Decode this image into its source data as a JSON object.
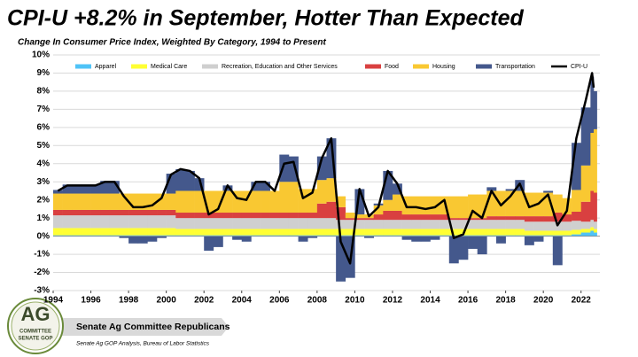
{
  "chart_data": {
    "type": "stacked_bar_line",
    "title": "CPI-U +8.2% in September, Hotter Than Expected",
    "subtitle": "Change In Consumer Price Index, Weighted By Category, 1994 to Present",
    "x": [
      1994,
      1994.5,
      1995,
      1995.5,
      1996,
      1996.5,
      1997,
      1997.5,
      1998,
      1998.5,
      1999,
      1999.5,
      2000,
      2000.5,
      2001,
      2001.5,
      2002,
      2002.5,
      2003,
      2003.5,
      2004,
      2004.5,
      2005,
      2005.5,
      2006,
      2006.5,
      2007,
      2007.5,
      2008,
      2008.5,
      2009,
      2009.5,
      2010,
      2010.5,
      2011,
      2011.5,
      2012,
      2012.5,
      2013,
      2013.5,
      2014,
      2014.5,
      2015,
      2015.5,
      2016,
      2016.5,
      2017,
      2017.5,
      2018,
      2018.5,
      2019,
      2019.5,
      2020,
      2020.5,
      2021,
      2021.5,
      2022,
      2022.5,
      2022.67
    ],
    "xlim": [
      1994,
      2023
    ],
    "xticks": [
      1994,
      1996,
      1998,
      2000,
      2002,
      2004,
      2006,
      2008,
      2010,
      2012,
      2014,
      2016,
      2018,
      2020,
      2022
    ],
    "ylim": [
      -3,
      10
    ],
    "yticks": [
      {
        "value": -3,
        "label": "-3%"
      },
      {
        "value": -2,
        "label": "-2%"
      },
      {
        "value": -1,
        "label": "-1%"
      },
      {
        "value": 0,
        "label": "0%"
      },
      {
        "value": 1,
        "label": "1%"
      },
      {
        "value": 2,
        "label": "2%"
      },
      {
        "value": 3,
        "label": "3%"
      },
      {
        "value": 4,
        "label": "4%"
      },
      {
        "value": 5,
        "label": "5%"
      },
      {
        "value": 6,
        "label": "6%"
      },
      {
        "value": 7,
        "label": "7%"
      },
      {
        "value": 8,
        "label": "8%"
      },
      {
        "value": 9,
        "label": "9%"
      },
      {
        "value": 10,
        "label": "10%"
      }
    ],
    "grid": true,
    "legend": "top",
    "series": [
      {
        "name": "Apparel",
        "color": "#4fc3f7",
        "values": [
          0.05,
          0.05,
          0.05,
          0.05,
          0.05,
          0.05,
          0.05,
          0.05,
          0.05,
          0.05,
          0.05,
          0.05,
          0.05,
          0.05,
          0.05,
          0.05,
          0.05,
          0.05,
          0.05,
          0.05,
          0.05,
          0.05,
          0.05,
          0.05,
          0.05,
          0.05,
          0.05,
          0.05,
          0.05,
          0.05,
          0.05,
          0.05,
          0.05,
          0.05,
          0.05,
          0.05,
          0.05,
          0.05,
          0.05,
          0.05,
          0.05,
          0.05,
          0.05,
          0.05,
          0.05,
          0.05,
          0.05,
          0.05,
          0.05,
          0.05,
          0.05,
          0.05,
          0.05,
          0.05,
          0.05,
          0.1,
          0.2,
          0.3,
          0.2
        ]
      },
      {
        "name": "Medical Care",
        "color": "#ffff33",
        "values": [
          0.4,
          0.4,
          0.4,
          0.4,
          0.4,
          0.4,
          0.4,
          0.4,
          0.4,
          0.4,
          0.4,
          0.4,
          0.4,
          0.35,
          0.35,
          0.35,
          0.35,
          0.35,
          0.35,
          0.35,
          0.35,
          0.35,
          0.35,
          0.35,
          0.35,
          0.35,
          0.35,
          0.35,
          0.35,
          0.35,
          0.35,
          0.35,
          0.35,
          0.35,
          0.35,
          0.35,
          0.35,
          0.35,
          0.35,
          0.35,
          0.35,
          0.35,
          0.35,
          0.35,
          0.35,
          0.35,
          0.35,
          0.35,
          0.35,
          0.35,
          0.25,
          0.25,
          0.25,
          0.25,
          0.25,
          0.25,
          0.2,
          0.2,
          0.2
        ]
      },
      {
        "name": "Recreation, Education and Other Services",
        "color": "#cfcfcf",
        "values": [
          0.7,
          0.7,
          0.7,
          0.7,
          0.7,
          0.7,
          0.7,
          0.7,
          0.7,
          0.7,
          0.7,
          0.7,
          0.7,
          0.6,
          0.6,
          0.6,
          0.6,
          0.6,
          0.6,
          0.6,
          0.6,
          0.6,
          0.6,
          0.6,
          0.6,
          0.6,
          0.6,
          0.6,
          0.6,
          0.6,
          0.5,
          0.5,
          0.5,
          0.5,
          0.5,
          0.5,
          0.5,
          0.5,
          0.5,
          0.5,
          0.5,
          0.5,
          0.5,
          0.5,
          0.5,
          0.5,
          0.5,
          0.5,
          0.5,
          0.5,
          0.5,
          0.5,
          0.5,
          0.5,
          0.5,
          0.5,
          0.4,
          0.4,
          0.4
        ]
      },
      {
        "name": "Food",
        "color": "#d94040",
        "values": [
          0.3,
          0.3,
          0.3,
          0.3,
          0.3,
          0.3,
          0.3,
          0.3,
          0.3,
          0.3,
          0.3,
          0.3,
          0.3,
          0.3,
          0.3,
          0.3,
          0.3,
          0.3,
          0.3,
          0.3,
          0.3,
          0.3,
          0.3,
          0.3,
          0.3,
          0.3,
          0.3,
          0.3,
          0.8,
          0.9,
          0.7,
          0.1,
          0.1,
          0.1,
          0.3,
          0.5,
          0.5,
          0.3,
          0.3,
          0.3,
          0.3,
          0.3,
          0.1,
          0.1,
          0.1,
          0.1,
          0.2,
          0.2,
          0.2,
          0.2,
          0.3,
          0.3,
          0.3,
          0.5,
          0.4,
          0.5,
          1.1,
          1.6,
          1.6
        ]
      },
      {
        "name": "Housing",
        "color": "#f9c832",
        "values": [
          0.9,
          0.9,
          0.9,
          0.9,
          0.9,
          0.9,
          0.9,
          0.9,
          0.9,
          0.9,
          0.9,
          0.9,
          0.9,
          1.2,
          1.2,
          1.2,
          1.2,
          1.2,
          1.2,
          1.2,
          1.2,
          1.2,
          1.2,
          1.2,
          1.7,
          1.7,
          1.3,
          1.3,
          1.3,
          1.3,
          0.6,
          0.3,
          0.2,
          0.2,
          0.5,
          0.6,
          0.9,
          1.0,
          1.0,
          1.0,
          1.0,
          1.0,
          1.2,
          1.2,
          1.3,
          1.3,
          1.4,
          1.4,
          1.4,
          1.4,
          1.3,
          1.3,
          1.3,
          1.0,
          0.9,
          1.2,
          2.0,
          3.2,
          3.5
        ]
      },
      {
        "name": "Transportation",
        "color": "#44588c",
        "values": [
          0.2,
          0.5,
          0.5,
          0.5,
          0.5,
          0.7,
          0.7,
          -0.1,
          -0.4,
          -0.4,
          -0.3,
          -0.1,
          1.1,
          1.2,
          1.1,
          0.7,
          -0.8,
          -0.6,
          0.3,
          -0.2,
          -0.3,
          0.5,
          0.5,
          0.0,
          1.5,
          1.4,
          -0.3,
          -0.1,
          1.3,
          2.2,
          -2.5,
          -2.3,
          1.4,
          -0.1,
          0.1,
          1.6,
          0.6,
          -0.2,
          -0.3,
          -0.3,
          -0.2,
          0.0,
          -1.5,
          -1.3,
          -0.7,
          -1.0,
          0.2,
          -0.4,
          0.1,
          0.6,
          -0.5,
          -0.3,
          0.1,
          -1.6,
          0.0,
          2.6,
          3.2,
          3.1,
          2.1
        ]
      },
      {
        "name": "CPI-U",
        "color": "#000000",
        "type": "line",
        "values": [
          2.5,
          2.8,
          2.8,
          2.8,
          2.8,
          3.0,
          3.0,
          2.2,
          1.6,
          1.6,
          1.7,
          2.1,
          3.4,
          3.7,
          3.6,
          3.2,
          1.2,
          1.5,
          2.8,
          2.1,
          2.0,
          3.0,
          3.0,
          2.5,
          4.0,
          4.1,
          2.1,
          2.4,
          4.3,
          5.4,
          -0.3,
          -1.5,
          2.6,
          1.1,
          1.6,
          3.6,
          2.9,
          1.6,
          1.6,
          1.5,
          1.6,
          2.0,
          -0.1,
          0.1,
          1.4,
          1.0,
          2.5,
          1.7,
          2.2,
          2.9,
          1.6,
          1.8,
          2.3,
          0.6,
          1.4,
          5.4,
          7.5,
          9.0,
          8.2
        ]
      }
    ]
  },
  "footer": {
    "banner": "Senate Ag Committee Republicans",
    "source": "Senate Ag GOP Analysis, Bureau of Labor Statistics",
    "logo": {
      "big": "AG",
      "line1": "COMMITTEE",
      "line2": "SENATE GOP"
    }
  }
}
